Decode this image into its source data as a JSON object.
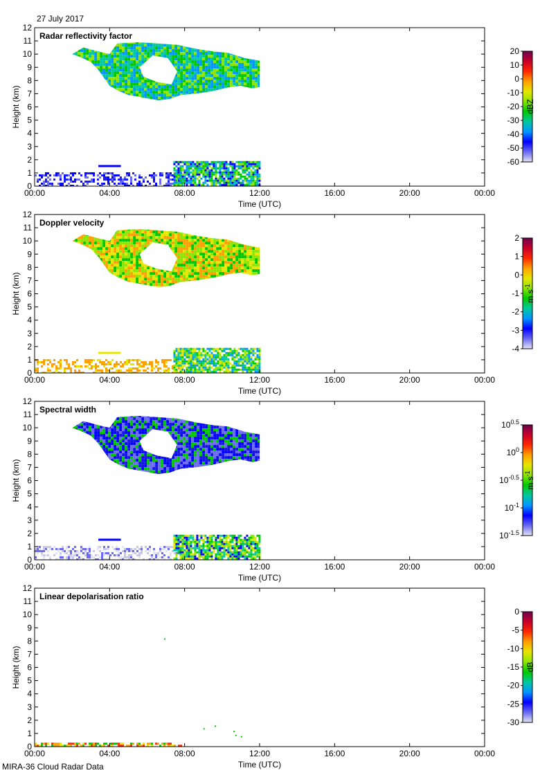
{
  "header": {
    "date": "27 July 2017"
  },
  "footer": {
    "title": "MIRA-36 Cloud Radar Data"
  },
  "colors": {
    "colormap": [
      "#e4e4f4",
      "#6a6af0",
      "#0000ff",
      "#0096ff",
      "#00c8a0",
      "#00c800",
      "#8ce600",
      "#e6e600",
      "#ffa000",
      "#ff2800",
      "#c80028",
      "#6e0050"
    ],
    "lowcloud_scatter": "#1a1aff",
    "pale_scatter": "#c8c8e6"
  },
  "chart_data": [
    {
      "type": "heatmap",
      "title": "Radar reflectivity factor",
      "xlabel": "Time (UTC)",
      "ylabel": "Height (km)",
      "x_ticks": [
        "00:00",
        "04:00",
        "08:00",
        "12:00",
        "16:00",
        "20:00",
        "00:00"
      ],
      "xlim": [
        0,
        24
      ],
      "ylim": [
        0,
        12
      ],
      "y_ticks": [
        "0",
        "1",
        "2",
        "3",
        "4",
        "5",
        "6",
        "7",
        "8",
        "9",
        "10",
        "11",
        "12"
      ],
      "colorbar": {
        "label": "dBZ",
        "ticks": [
          "20",
          "10",
          "0",
          "-10",
          "-20",
          "-30",
          "-40",
          "-50",
          "-60"
        ]
      },
      "data_extent_hours": [
        0,
        12
      ],
      "upper_cloud": {
        "start_hour": 2.0,
        "end_hour": 12.0,
        "base_km": 6.5,
        "top_km": 10.9
      },
      "low_layer": {
        "top_km": 1.9
      },
      "dominant_colors": [
        "#8ce600",
        "#00c800",
        "#0096ff",
        "#00c8a0"
      ]
    },
    {
      "type": "heatmap",
      "title": "Doppler velocity",
      "xlabel": "Time (UTC)",
      "ylabel": "Height (km)",
      "x_ticks": [
        "00:00",
        "04:00",
        "08:00",
        "12:00",
        "16:00",
        "20:00",
        "00:00"
      ],
      "xlim": [
        0,
        24
      ],
      "ylim": [
        0,
        12
      ],
      "y_ticks": [
        "0",
        "1",
        "2",
        "3",
        "4",
        "5",
        "6",
        "7",
        "8",
        "9",
        "10",
        "11",
        "12"
      ],
      "colorbar": {
        "label": "m s",
        "label_exponent": "-1",
        "ticks": [
          "2",
          "1",
          "0",
          "-1",
          "-2",
          "-3",
          "-4"
        ]
      },
      "data_extent_hours": [
        0,
        12
      ],
      "upper_cloud": {
        "start_hour": 2.0,
        "end_hour": 12.0,
        "base_km": 6.5,
        "top_km": 10.9
      },
      "low_layer": {
        "top_km": 1.9
      },
      "dominant_colors": [
        "#8ce600",
        "#e6e600",
        "#00c800",
        "#ffa000"
      ]
    },
    {
      "type": "heatmap",
      "title": "Spectral width",
      "xlabel": "Time (UTC)",
      "ylabel": "Height (km)",
      "x_ticks": [
        "00:00",
        "04:00",
        "08:00",
        "12:00",
        "16:00",
        "20:00",
        "00:00"
      ],
      "xlim": [
        0,
        24
      ],
      "ylim": [
        0,
        12
      ],
      "y_ticks": [
        "0",
        "1",
        "2",
        "3",
        "4",
        "5",
        "6",
        "7",
        "8",
        "9",
        "10",
        "11",
        "12"
      ],
      "colorbar": {
        "label": "m s",
        "label_exponent": "-1",
        "ticks": [
          {
            "base": "10",
            "exp": "0.5"
          },
          {
            "base": "10",
            "exp": "0"
          },
          {
            "base": "10",
            "exp": "-0.5"
          },
          {
            "base": "10",
            "exp": "-1"
          },
          {
            "base": "10",
            "exp": "-1.5"
          }
        ]
      },
      "data_extent_hours": [
        0,
        12
      ],
      "upper_cloud": {
        "start_hour": 2.0,
        "end_hour": 12.0,
        "base_km": 6.5,
        "top_km": 10.9
      },
      "low_layer": {
        "top_km": 1.9
      },
      "dominant_colors": [
        "#0000ff",
        "#1414e6",
        "#6a6af0",
        "#00c800"
      ]
    },
    {
      "type": "heatmap",
      "title": "Linear depolarisation ratio",
      "xlabel": "Time (UTC)",
      "ylabel": "Height (km)",
      "x_ticks": [
        "00:00",
        "04:00",
        "08:00",
        "12:00",
        "16:00",
        "20:00",
        "00:00"
      ],
      "xlim": [
        0,
        24
      ],
      "ylim": [
        0,
        12
      ],
      "y_ticks": [
        "0",
        "1",
        "2",
        "3",
        "4",
        "5",
        "6",
        "7",
        "8",
        "9",
        "10",
        "11",
        "12"
      ],
      "colorbar": {
        "label": "dB",
        "ticks": [
          "0",
          "-5",
          "-10",
          "-15",
          "-20",
          "-25",
          "-30"
        ]
      },
      "data_extent_hours": [
        0,
        12
      ],
      "low_layer": {
        "top_km": 0.3
      },
      "dominant_colors": [
        "#ffa000",
        "#00c800",
        "#ff2800",
        "#e6e600"
      ]
    }
  ]
}
